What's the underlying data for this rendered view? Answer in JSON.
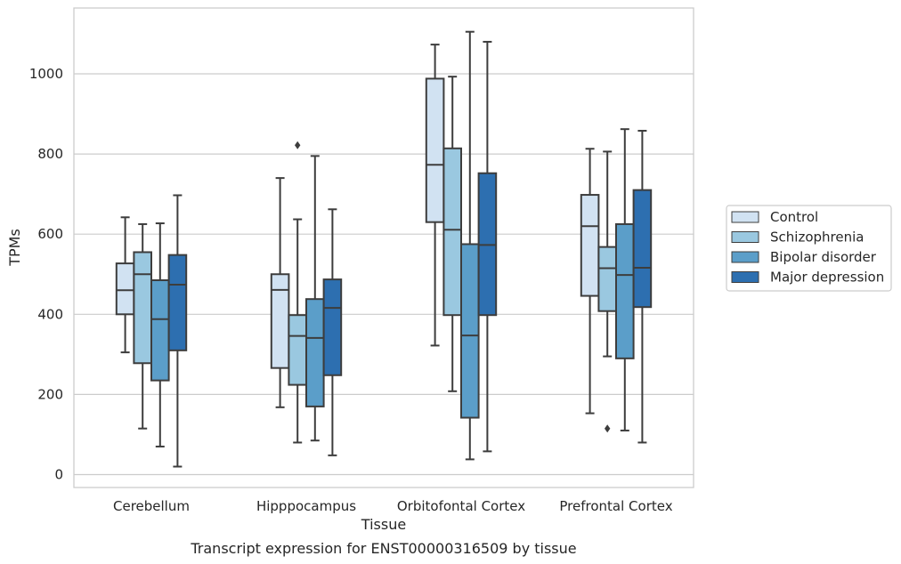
{
  "chart_data": {
    "type": "boxplot",
    "caption": "Transcript expression for ENST00000316509 by tissue",
    "xlabel": "Tissue",
    "ylabel": "TPMs",
    "ylim": [
      -35,
      1160
    ],
    "yticks": [
      0,
      200,
      400,
      600,
      800,
      1000
    ],
    "grid": "horizontal",
    "legend_position": "right",
    "categories": [
      "Cerebellum",
      "Hipppocampus",
      "Orbitofontal Cortex",
      "Prefrontal Cortex"
    ],
    "series": [
      {
        "name": "Control",
        "color": "#d1e2f2",
        "boxes": [
          {
            "whislo": 305,
            "q1": 400,
            "med": 460,
            "q3": 527,
            "whishi": 642,
            "fliers": []
          },
          {
            "whislo": 168,
            "q1": 266,
            "med": 461,
            "q3": 500,
            "whishi": 740,
            "fliers": []
          },
          {
            "whislo": 322,
            "q1": 630,
            "med": 773,
            "q3": 988,
            "whishi": 1073,
            "fliers": []
          },
          {
            "whislo": 153,
            "q1": 446,
            "med": 620,
            "q3": 698,
            "whishi": 813,
            "fliers": []
          }
        ]
      },
      {
        "name": "Schizophrenia",
        "color": "#9ac8e0",
        "boxes": [
          {
            "whislo": 115,
            "q1": 278,
            "med": 500,
            "q3": 555,
            "whishi": 625,
            "fliers": []
          },
          {
            "whislo": 80,
            "q1": 224,
            "med": 346,
            "q3": 398,
            "whishi": 637,
            "fliers": [
              822
            ]
          },
          {
            "whislo": 208,
            "q1": 398,
            "med": 611,
            "q3": 814,
            "whishi": 993,
            "fliers": []
          },
          {
            "whislo": 295,
            "q1": 408,
            "med": 515,
            "q3": 568,
            "whishi": 806,
            "fliers": [
              115
            ]
          }
        ]
      },
      {
        "name": "Bipolar disorder",
        "color": "#5b9ec9",
        "boxes": [
          {
            "whislo": 70,
            "q1": 235,
            "med": 388,
            "q3": 485,
            "whishi": 627,
            "fliers": []
          },
          {
            "whislo": 85,
            "q1": 170,
            "med": 341,
            "q3": 438,
            "whishi": 795,
            "fliers": []
          },
          {
            "whislo": 38,
            "q1": 142,
            "med": 347,
            "q3": 575,
            "whishi": 1105,
            "fliers": []
          },
          {
            "whislo": 110,
            "q1": 290,
            "med": 498,
            "q3": 625,
            "whishi": 862,
            "fliers": []
          }
        ]
      },
      {
        "name": "Major depression",
        "color": "#2d6fb0",
        "boxes": [
          {
            "whislo": 20,
            "q1": 310,
            "med": 474,
            "q3": 548,
            "whishi": 697,
            "fliers": []
          },
          {
            "whislo": 48,
            "q1": 248,
            "med": 416,
            "q3": 487,
            "whishi": 662,
            "fliers": []
          },
          {
            "whislo": 58,
            "q1": 398,
            "med": 573,
            "q3": 752,
            "whishi": 1080,
            "fliers": []
          },
          {
            "whislo": 80,
            "q1": 418,
            "med": 516,
            "q3": 710,
            "whishi": 858,
            "fliers": []
          }
        ]
      }
    ]
  }
}
